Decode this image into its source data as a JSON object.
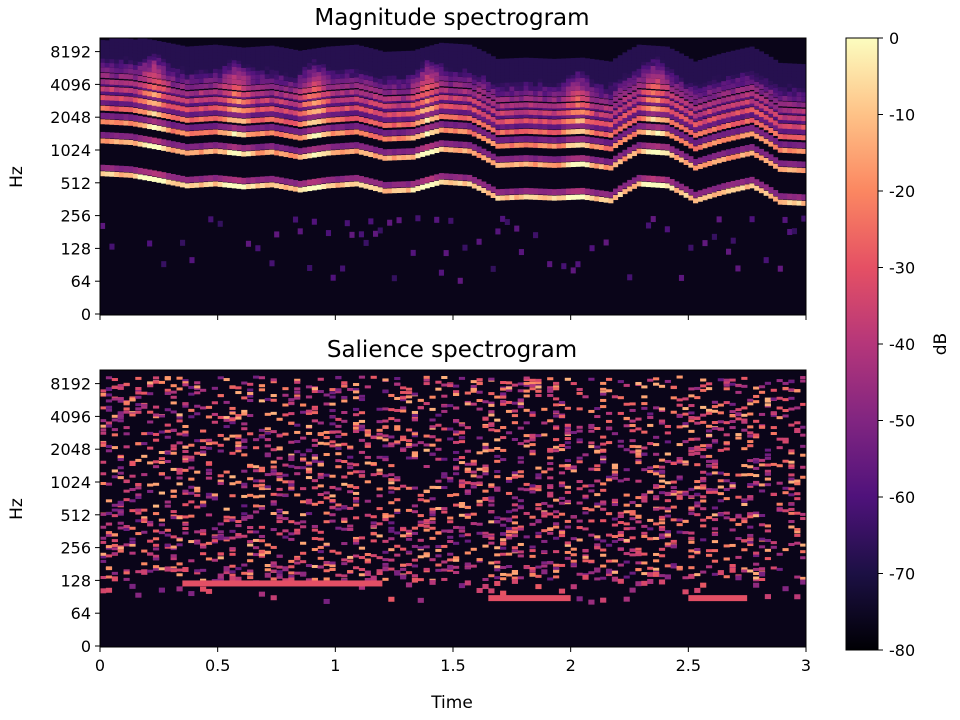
{
  "chart_data": [
    {
      "type": "heatmap",
      "title": "Magnitude spectrogram",
      "ylabel": "Hz",
      "xlabel": "",
      "x_range": [
        0,
        3
      ],
      "y_scale": "log2",
      "y_ticks": [
        "0",
        "64",
        "128",
        "256",
        "512",
        "1024",
        "2048",
        "4096",
        "8192"
      ],
      "x_ticks": [],
      "harmonic_tracks": [
        {
          "harmonic": 1,
          "f0_hz": [
            620,
            600,
            540,
            480,
            500,
            470,
            490,
            440,
            480,
            500,
            430,
            440,
            520,
            500,
            370,
            380,
            370,
            380,
            350,
            500,
            480,
            350,
            420,
            480,
            340,
            330
          ]
        },
        {
          "harmonic": 2,
          "note": "2x fundamental"
        },
        {
          "harmonic": 3,
          "note": "3x fundamental"
        }
      ]
    },
    {
      "type": "heatmap",
      "title": "Salience spectrogram",
      "ylabel": "Hz",
      "xlabel": "Time",
      "x_range": [
        0,
        3
      ],
      "y_scale": "log2",
      "y_ticks": [
        "0",
        "64",
        "128",
        "256",
        "512",
        "1024",
        "2048",
        "4096",
        "8192"
      ],
      "x_ticks": [
        "0",
        "0.5",
        "1",
        "1.5",
        "2",
        "2.5",
        "3"
      ],
      "bright_bands": [
        {
          "t_start": 1.65,
          "t_end": 2.0,
          "hz": 88
        },
        {
          "t_start": 2.5,
          "t_end": 2.75,
          "hz": 88
        },
        {
          "t_start": 0.35,
          "t_end": 1.2,
          "hz": 120
        }
      ]
    }
  ],
  "colorbar": {
    "label": "dB",
    "colormap": "magma",
    "range": [
      -80,
      0
    ],
    "ticks": [
      "0",
      "-10",
      "-20",
      "-30",
      "-40",
      "-50",
      "-60",
      "-70",
      "-80"
    ]
  }
}
